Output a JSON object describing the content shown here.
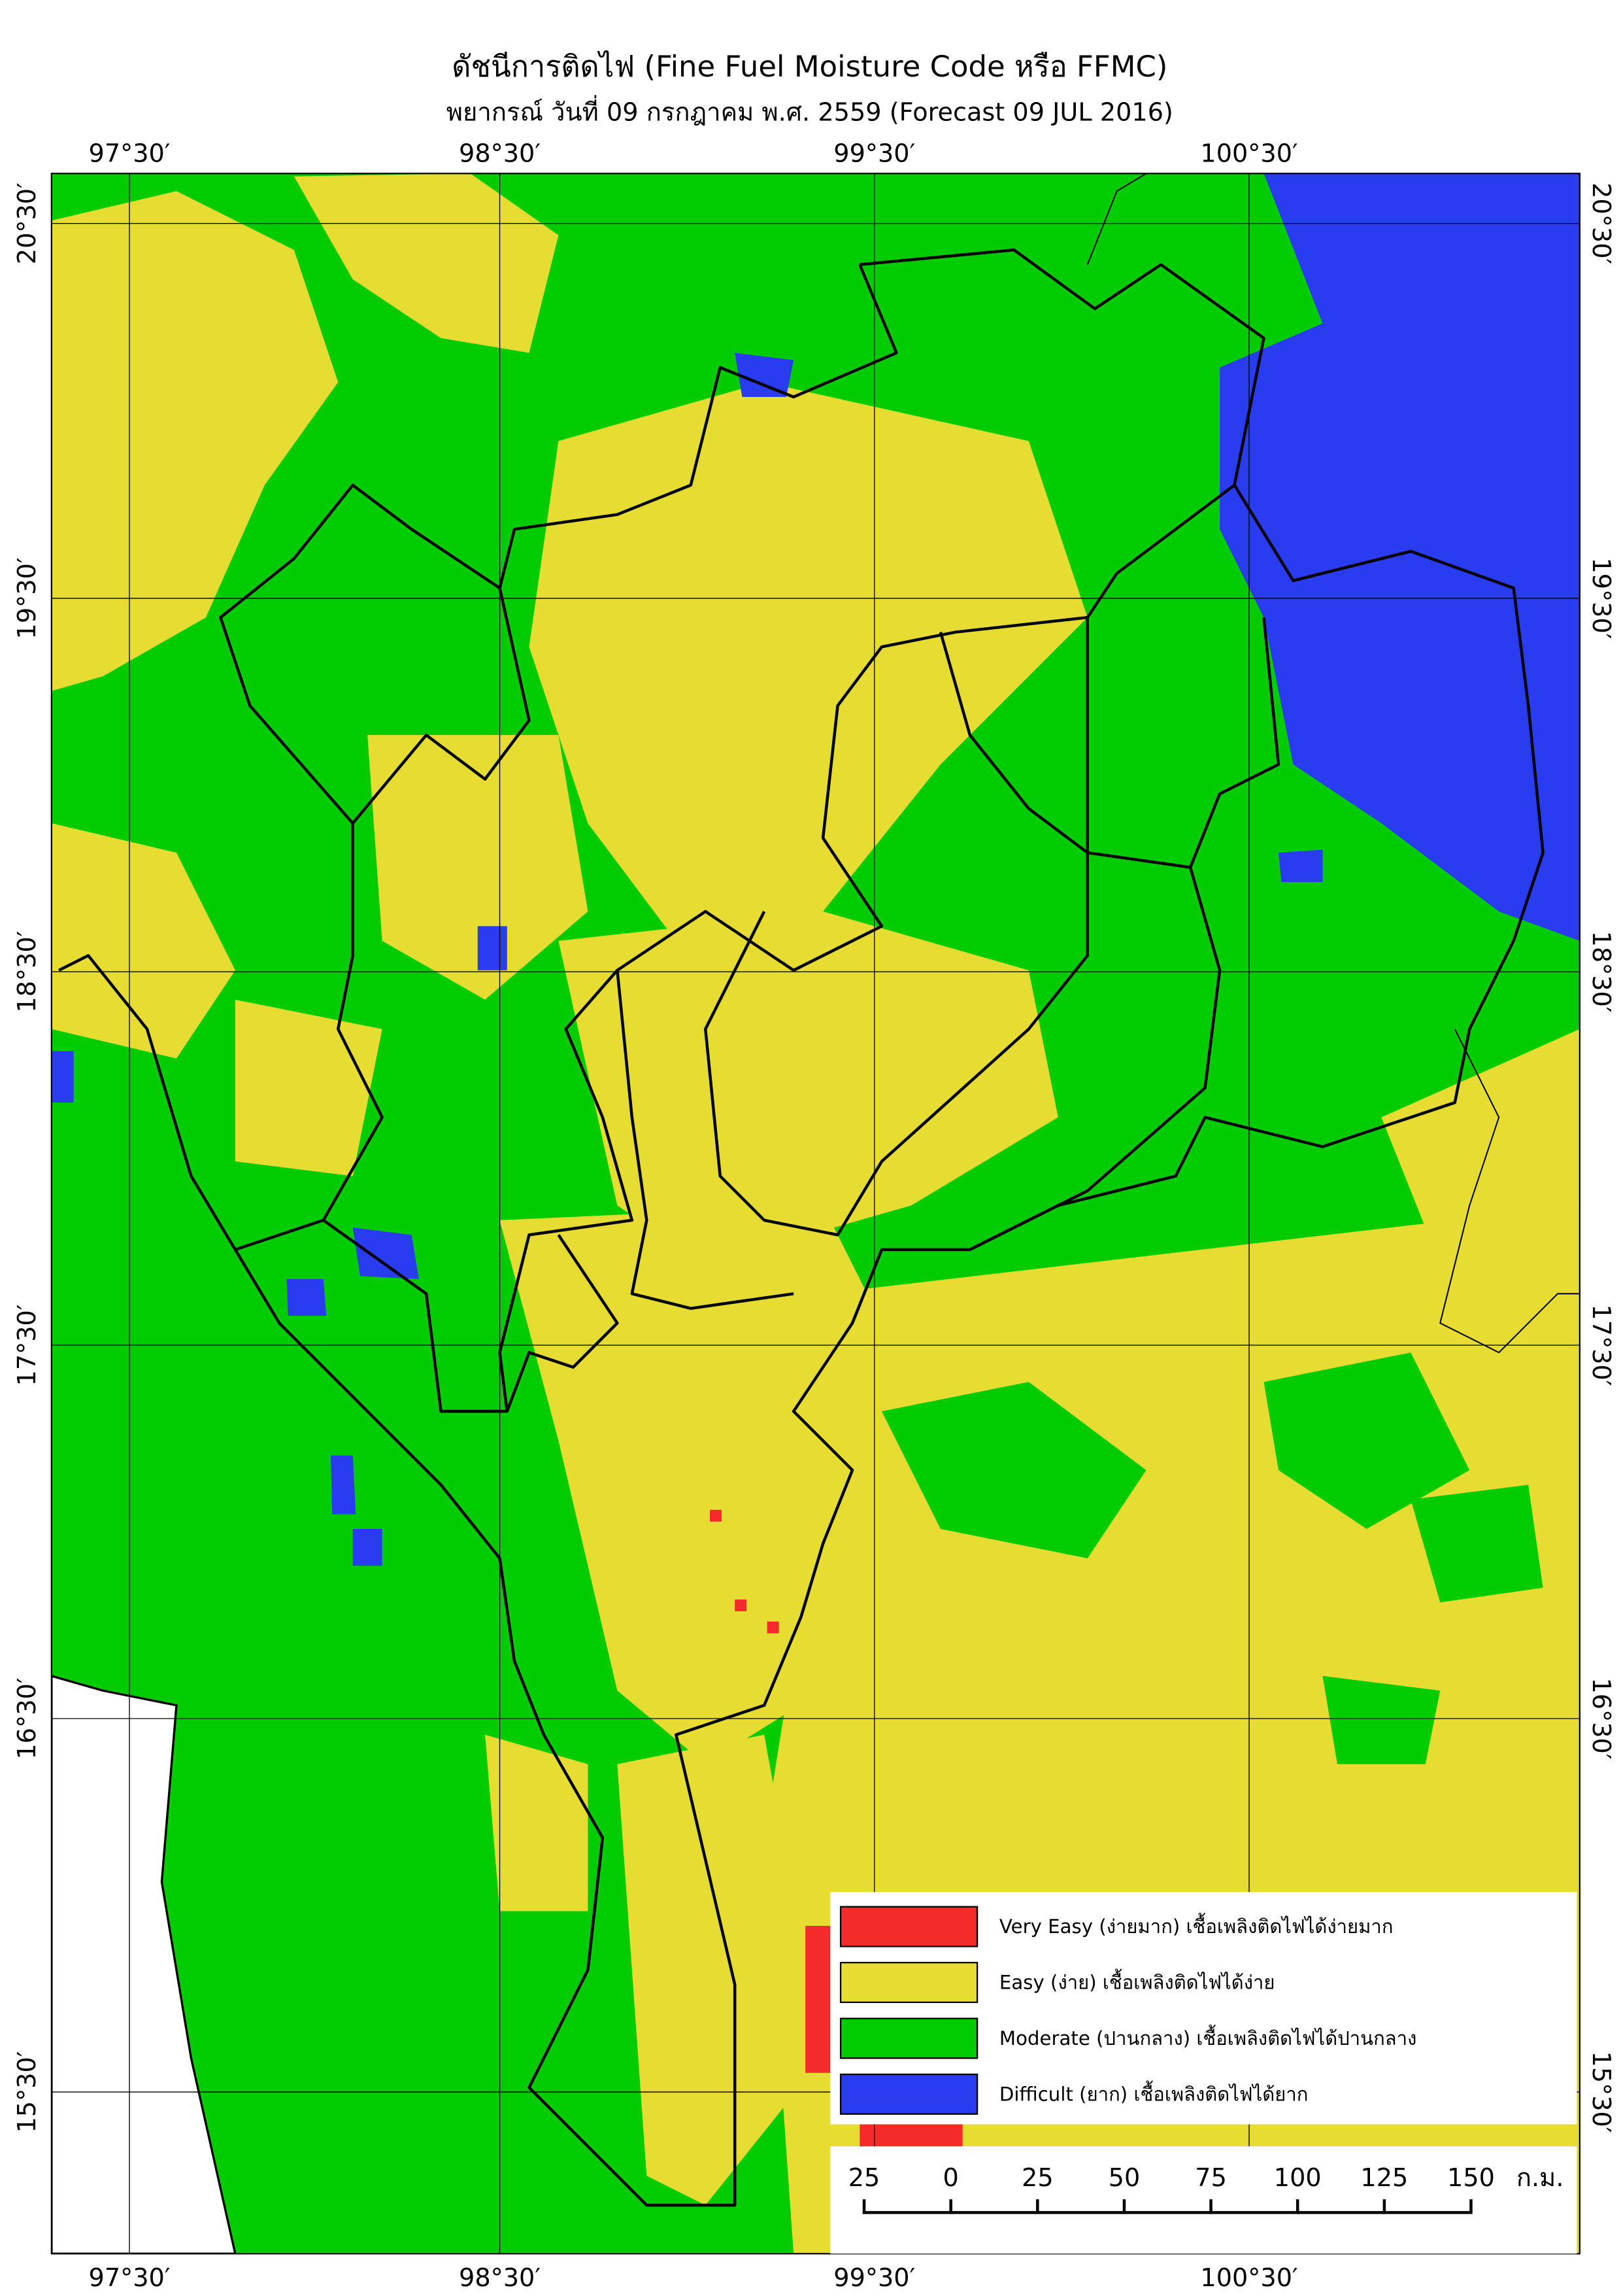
{
  "header": {
    "title": "ดัชนีการติดไฟ (Fine Fuel Moisture Code หรือ FFMC)",
    "subtitle": "พยากรณ์ วันที่ 09 กรกฎาคม พ.ศ. 2559 (Forecast 09 JUL 2016)"
  },
  "map": {
    "lon_labels": [
      "97°30′",
      "98°30′",
      "99°30′",
      "100°30′"
    ],
    "lat_labels": [
      "20°30′",
      "19°30′",
      "18°30′",
      "17°30′",
      "16°30′",
      "15°30′"
    ]
  },
  "legend": {
    "items": [
      {
        "label": "Very Easy (ง่ายมาก) เชื้อเพลิงติดไฟได้ง่ายมาก",
        "color": "#f52a2a"
      },
      {
        "label": "Easy (ง่าย) เชื้อเพลิงติดไฟได้ง่าย",
        "color": "#e6dc32"
      },
      {
        "label": "Moderate (ปานกลาง) เชื้อเพลิงติดไฟได้ปานกลาง",
        "color": "#00cc00"
      },
      {
        "label": "Difficult (ยาก) เชื้อเพลิงติดไฟได้ยาก",
        "color": "#2a3cf0"
      }
    ]
  },
  "scale_bar": {
    "labels": [
      "25",
      "0",
      "25",
      "50",
      "75",
      "100",
      "125",
      "150"
    ],
    "unit": "ก.ม."
  }
}
